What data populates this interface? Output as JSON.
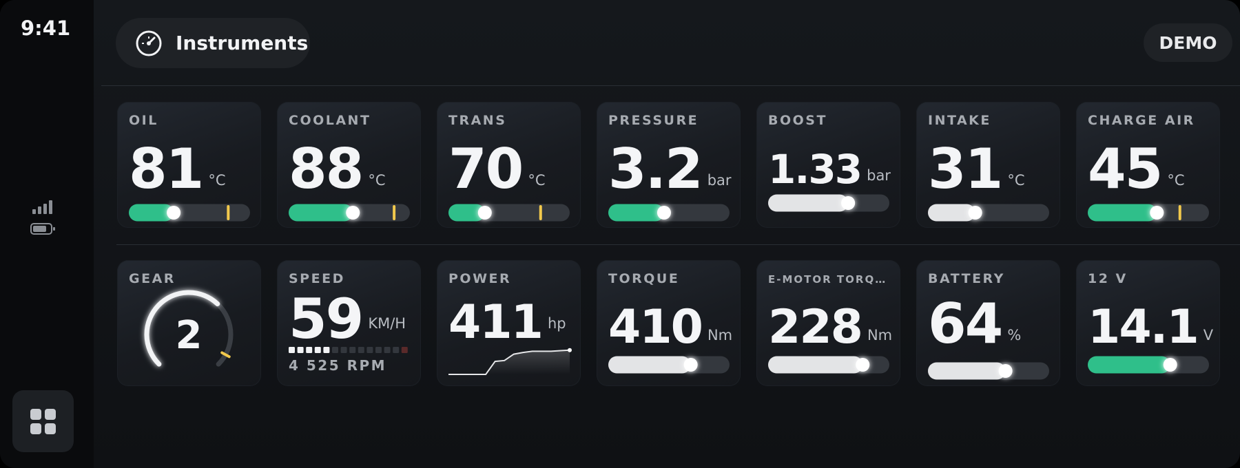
{
  "status": {
    "time": "9:41"
  },
  "header": {
    "title": "Instruments",
    "badge": "DEMO"
  },
  "rows": [
    {
      "tiles": [
        {
          "label": "OIL",
          "value": 81,
          "unit": "°C",
          "level": 0.37,
          "marker": 0.82,
          "color": "#2fbf8a"
        },
        {
          "label": "COOLANT",
          "value": 88,
          "unit": "°C",
          "level": 0.53,
          "marker": 0.87,
          "color": "#2fbf8a"
        },
        {
          "label": "TRANS",
          "value": 70,
          "unit": "°C",
          "level": 0.3,
          "marker": 0.76,
          "color": "#2fbf8a"
        },
        {
          "label": "PRESSURE",
          "value": 3.2,
          "unit": "bar",
          "level": 0.46,
          "color": "#2fbf8a"
        },
        {
          "label": "BOOST",
          "value": 1.33,
          "unit": "bar",
          "level": 0.66,
          "color": "#e3e4e6"
        },
        {
          "label": "INTAKE",
          "value": 31,
          "unit": "°C",
          "level": 0.39,
          "color": "#e3e4e6"
        },
        {
          "label": "CHARGE AIR",
          "value": 45,
          "unit": "°C",
          "level": 0.57,
          "marker": 0.76,
          "color": "#2fbf8a"
        }
      ]
    },
    {
      "tiles": [
        {
          "label": "GEAR",
          "value": 2,
          "kind": "dial",
          "level": 0.66,
          "marker": 0.94,
          "color": "#f2f3f5"
        },
        {
          "label": "SPEED",
          "value": 59,
          "unit": "KM/H",
          "kind": "segments",
          "segments": 14,
          "lit": 5,
          "rpm": "4 525 RPM"
        },
        {
          "label": "POWER",
          "value": 411,
          "unit": "hp",
          "kind": "trend",
          "trend": [
            0,
            0,
            0,
            0,
            0,
            0.45,
            0.48,
            0.7,
            0.76,
            0.8,
            0.8,
            0.8,
            0.82,
            0.84
          ]
        },
        {
          "label": "TORQUE",
          "value": 410,
          "unit": "Nm",
          "level": 0.68,
          "color": "#e3e4e6"
        },
        {
          "label": "E-MOTOR TORQ…",
          "value": 228,
          "unit": "Nm",
          "level": 0.78,
          "color": "#e3e4e6"
        },
        {
          "label": "BATTERY",
          "value": 64,
          "unit": "%",
          "level": 0.64,
          "color": "#e3e4e6"
        },
        {
          "label": "12 V",
          "value": 14.1,
          "unit": "V",
          "level": 0.68,
          "color": "#2fbf8a"
        }
      ]
    }
  ]
}
